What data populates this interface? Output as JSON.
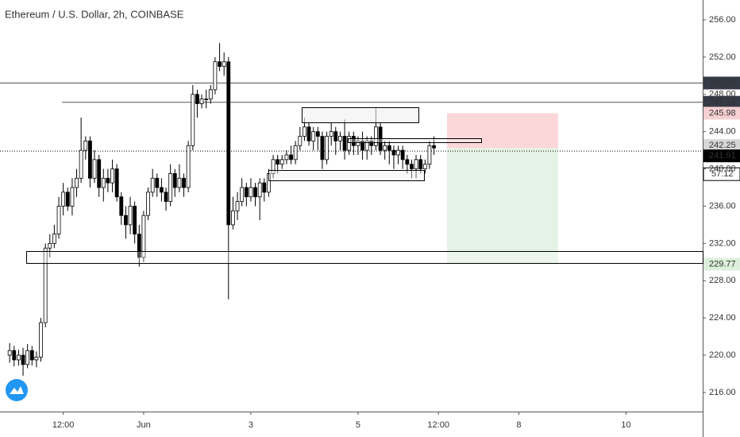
{
  "chart_data": {
    "type": "candlestick",
    "title": "Ethereum / U.S. Dollar, 2h, COINBASE",
    "x": [
      -1.5,
      -1.417,
      -1.333,
      -1.25,
      -1.167,
      -1.083,
      -1,
      -0.917,
      -0.833,
      -0.75,
      -0.667,
      -0.583,
      -0.5,
      -0.417,
      -0.333,
      -0.25,
      -0.167,
      -0.083,
      0,
      0.083,
      0.167,
      0.25,
      0.333,
      0.417,
      0.5,
      0.583,
      0.667,
      0.75,
      0.833,
      0.917,
      1,
      1.083,
      1.167,
      1.25,
      1.333,
      1.417,
      1.5,
      1.583,
      1.667,
      1.75,
      1.833,
      1.917,
      2,
      2.083,
      2.167,
      2.25,
      2.333,
      2.417,
      2.5,
      2.583,
      2.667,
      2.75,
      2.833,
      2.917,
      3,
      3.083,
      3.167,
      3.25,
      3.333,
      3.417,
      3.5,
      3.583,
      3.667,
      3.75,
      3.833,
      3.917,
      4,
      4.083,
      4.167,
      4.25,
      4.333,
      4.417,
      4.5,
      4.583,
      4.667,
      4.75,
      4.833,
      4.917,
      5,
      5.083,
      5.167,
      5.25,
      5.333,
      5.417,
      5.5,
      5.583,
      5.667,
      5.75,
      5.833,
      5.917,
      6,
      6.083,
      6.167,
      6.25,
      6.333,
      6.417
    ],
    "open": [
      220,
      220.5,
      219.5,
      220,
      219,
      220.5,
      219.5,
      219.8,
      223.5,
      231.5,
      232,
      233,
      236,
      237.5,
      236,
      238,
      239,
      242,
      243,
      239,
      241,
      238,
      239,
      238.5,
      240,
      237,
      235,
      234,
      236,
      233,
      230.5,
      235,
      237.5,
      239,
      238,
      237.5,
      236.5,
      239.5,
      238,
      239,
      238,
      242.5,
      248,
      247,
      247.5,
      247.5,
      248.5,
      251.5,
      251,
      251.5,
      234,
      235.5,
      236.5,
      238,
      237,
      238,
      237,
      238.5,
      237.5,
      239.5,
      241,
      240.5,
      241,
      241.5,
      241,
      242.5,
      243.5,
      244.5,
      243,
      244,
      243.5,
      241,
      243.5,
      244,
      243,
      243.5,
      242,
      243.5,
      242.5,
      243,
      242,
      243,
      242.5,
      244.5,
      242,
      242.5,
      242,
      241.5,
      242,
      241,
      240.5,
      240,
      241,
      240,
      240.5,
      242.5
    ],
    "high": [
      221.3,
      221,
      220.6,
      220.8,
      221.2,
      221,
      220.4,
      224,
      232,
      233,
      234,
      237,
      238.5,
      238,
      239,
      240,
      245.5,
      243.5,
      243.5,
      242,
      241.5,
      240,
      240,
      241,
      240.5,
      237.5,
      236,
      237,
      236.5,
      234,
      235.5,
      238,
      240,
      239.5,
      239,
      238,
      240.5,
      240,
      240.5,
      239.5,
      243,
      249,
      248.5,
      248,
      248.5,
      249,
      252,
      253.5,
      252.5,
      252,
      237,
      237.5,
      239,
      238.5,
      239,
      238.5,
      239,
      239,
      240,
      241.5,
      241.5,
      241.5,
      242,
      242.5,
      243,
      244.5,
      245.5,
      245,
      244.5,
      244.5,
      244,
      244,
      245,
      244.5,
      244,
      245.3,
      244,
      244,
      243.5,
      244,
      243.5,
      243.5,
      246.5,
      245,
      243,
      243,
      242.5,
      242.5,
      242.5,
      241.5,
      241,
      241.5,
      241.5,
      241,
      243,
      243.5
    ],
    "low": [
      219.2,
      218.8,
      218.9,
      217.8,
      218.6,
      218.9,
      218.7,
      219.3,
      223,
      230.5,
      231.5,
      232.5,
      235,
      235.5,
      235,
      237,
      238.5,
      241,
      238,
      238.5,
      237,
      236.5,
      237.5,
      237.5,
      236.5,
      234,
      232.5,
      233,
      232,
      229.5,
      230,
      234.5,
      237,
      237,
      236.5,
      235.5,
      236,
      237,
      237.5,
      237,
      237.5,
      242,
      245.5,
      246.5,
      246.5,
      247,
      248,
      250.5,
      250,
      226,
      233.5,
      234.5,
      236,
      236,
      236.5,
      236,
      234.5,
      236.5,
      237,
      239,
      239.5,
      240,
      240.5,
      240.5,
      240.5,
      242,
      243,
      242.5,
      242,
      242,
      240,
      240.5,
      242.5,
      241.5,
      242,
      241,
      241.5,
      241.5,
      241.5,
      241,
      241,
      241.5,
      242,
      241.5,
      241,
      240.5,
      240,
      240.5,
      240,
      239.5,
      239,
      239,
      239.5,
      239.5,
      240,
      241.5
    ],
    "close": [
      220.5,
      219.5,
      220,
      219,
      220.5,
      219.5,
      219.8,
      223.5,
      231.5,
      232,
      233,
      236,
      237.5,
      236,
      238,
      239,
      242,
      243,
      239,
      241,
      238,
      239,
      238.5,
      240,
      237,
      235,
      234,
      236,
      233,
      230.5,
      235,
      237.5,
      239,
      238,
      237.5,
      236.5,
      239.5,
      238,
      239,
      238,
      242.5,
      248,
      247,
      247.5,
      247.5,
      248.5,
      251.5,
      251,
      251.5,
      234,
      235.5,
      236.5,
      238,
      237,
      238,
      237,
      238.5,
      237.5,
      239.5,
      241,
      240.5,
      241,
      241.5,
      241,
      242.5,
      243.5,
      244.5,
      243,
      244,
      243.5,
      241,
      243.5,
      244,
      243,
      243.5,
      242,
      243.5,
      242.5,
      243,
      242,
      243,
      242.5,
      244.5,
      242,
      242.5,
      242,
      241.5,
      242,
      241,
      240.5,
      240,
      241,
      240,
      240.5,
      242.5,
      242.25
    ],
    "up_color": "#ffffff",
    "down_color": "#000000",
    "xlim": [
      -1.68,
      11.43
    ],
    "xticks": [
      {
        "value": -0.5,
        "label": "12:00"
      },
      {
        "value": 1,
        "label": "Jun"
      },
      3,
      5,
      {
        "value": 6.5,
        "label": "12:00"
      },
      8,
      10
    ],
    "ylim": [
      213.95,
      258.13
    ],
    "yticks": [
      {
        "value": 216,
        "label": "216.00"
      },
      {
        "value": 220,
        "label": "220.00"
      },
      {
        "value": 224,
        "label": "224.00"
      },
      {
        "value": 228,
        "label": "228.00"
      },
      {
        "value": 232,
        "label": "232.00"
      },
      {
        "value": 236,
        "label": "236.00"
      },
      {
        "value": 240,
        "label": "240.00"
      },
      {
        "value": 244,
        "label": "244.00"
      },
      {
        "value": 248,
        "label": "248.00"
      },
      {
        "value": 252,
        "label": "252.00"
      },
      {
        "value": 256,
        "label": "256.00"
      }
    ],
    "levels": [
      249.22,
      247.15
    ],
    "position": {
      "stop": 245.98,
      "entry": 242.25,
      "target": 229.77
    },
    "last_price": 241.91,
    "countdown": "57:12"
  }
}
